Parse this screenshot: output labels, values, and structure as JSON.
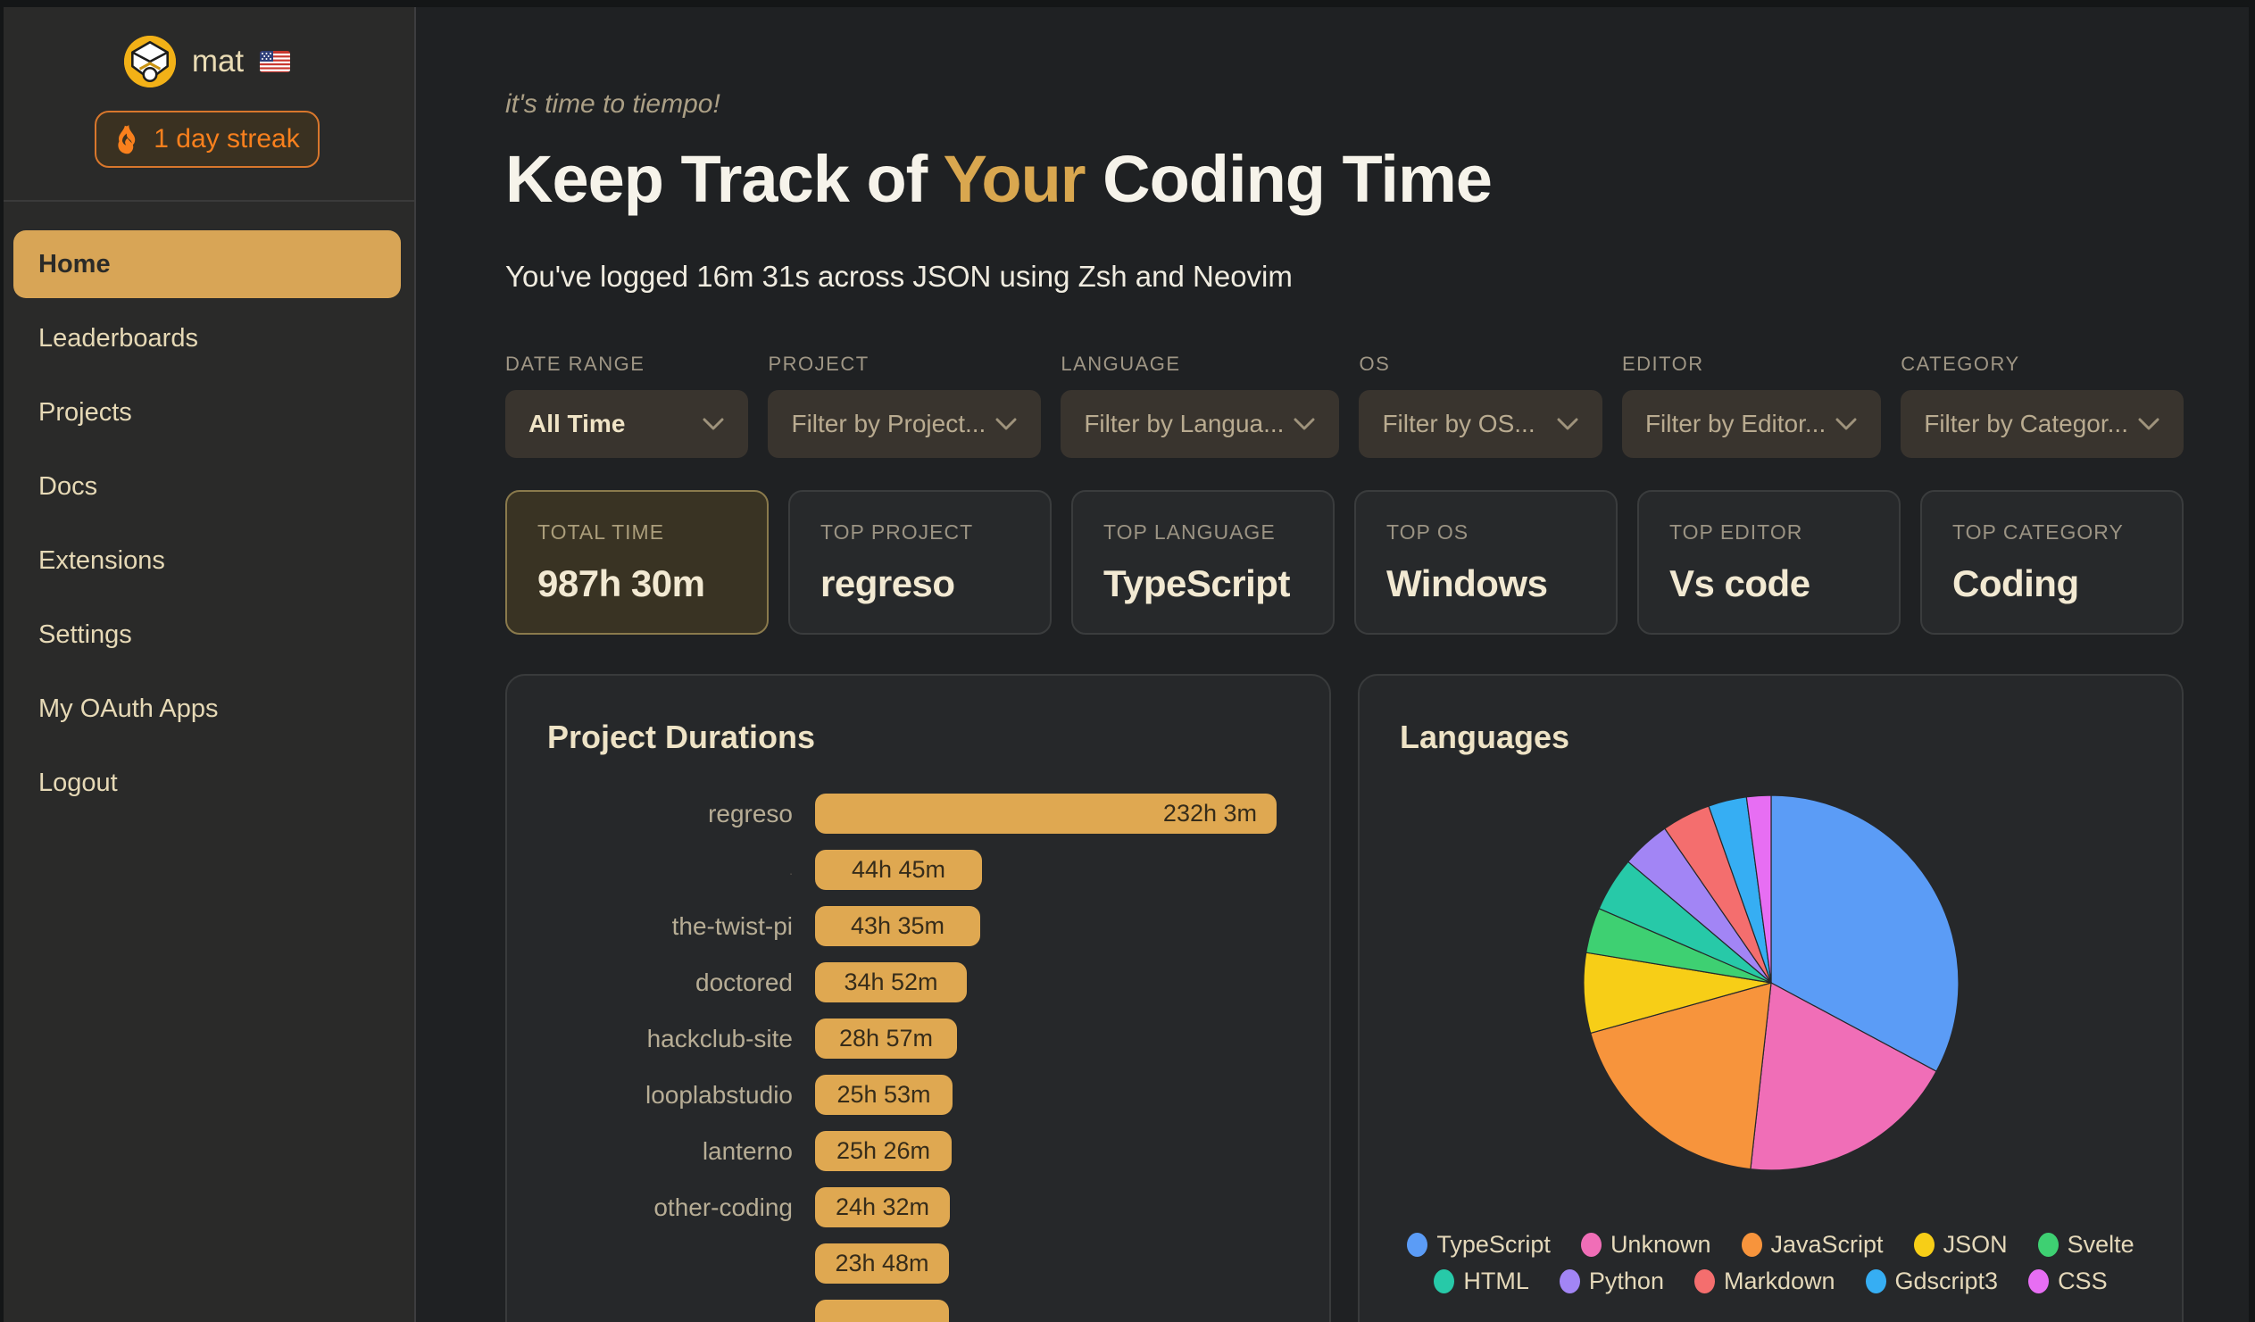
{
  "sidebar": {
    "username": "mat",
    "flag": "us-flag",
    "streak_label": "1 day streak",
    "items": [
      {
        "label": "Home",
        "active": true
      },
      {
        "label": "Leaderboards",
        "active": false
      },
      {
        "label": "Projects",
        "active": false
      },
      {
        "label": "Docs",
        "active": false
      },
      {
        "label": "Extensions",
        "active": false
      },
      {
        "label": "Settings",
        "active": false
      },
      {
        "label": "My OAuth Apps",
        "active": false
      },
      {
        "label": "Logout",
        "active": false
      }
    ]
  },
  "header": {
    "tagline": "it's time to tiempo!",
    "title_prefix": "Keep Track of ",
    "title_highlight": "Your",
    "title_suffix": " Coding Time",
    "subtitle": "You've logged 16m 31s across JSON using Zsh and Neovim"
  },
  "filters": [
    {
      "label": "DATE RANGE",
      "value": "All Time",
      "selected": true
    },
    {
      "label": "PROJECT",
      "value": "Filter by Project...",
      "selected": false
    },
    {
      "label": "LANGUAGE",
      "value": "Filter by Langua...",
      "selected": false
    },
    {
      "label": "OS",
      "value": "Filter by OS...",
      "selected": false
    },
    {
      "label": "EDITOR",
      "value": "Filter by Editor...",
      "selected": false
    },
    {
      "label": "CATEGORY",
      "value": "Filter by Categor...",
      "selected": false
    }
  ],
  "stats": [
    {
      "label": "TOTAL TIME",
      "value": "987h 30m",
      "highlight": true
    },
    {
      "label": "TOP PROJECT",
      "value": "regreso",
      "highlight": false
    },
    {
      "label": "TOP LANGUAGE",
      "value": "TypeScript",
      "highlight": false
    },
    {
      "label": "TOP OS",
      "value": "Windows",
      "highlight": false
    },
    {
      "label": "TOP EDITOR",
      "value": "Vs code",
      "highlight": false
    },
    {
      "label": "TOP CATEGORY",
      "value": "Coding",
      "highlight": false
    }
  ],
  "chart_data": [
    {
      "type": "bar",
      "title": "Project Durations",
      "orientation": "horizontal",
      "bar_color": "#dfa851",
      "bars": [
        {
          "label": "regreso",
          "value_label": "232h 3m",
          "hours": 232.05
        },
        {
          "label": ".",
          "value_label": "44h 45m",
          "hours": 44.75
        },
        {
          "label": "the-twist-pi",
          "value_label": "43h 35m",
          "hours": 43.58
        },
        {
          "label": "doctored",
          "value_label": "34h 52m",
          "hours": 34.87
        },
        {
          "label": "hackclub-site",
          "value_label": "28h 57m",
          "hours": 28.95
        },
        {
          "label": "looplabstudio",
          "value_label": "25h 53m",
          "hours": 25.88
        },
        {
          "label": "lanterno",
          "value_label": "25h 26m",
          "hours": 25.43
        },
        {
          "label": "other-coding",
          "value_label": "24h 32m",
          "hours": 24.53
        },
        {
          "label": "",
          "value_label": "23h 48m",
          "hours": 23.8
        }
      ],
      "partial_bar_at_bottom": true
    },
    {
      "type": "pie",
      "title": "Languages",
      "legend_position": "bottom",
      "slices": [
        {
          "label": "TypeScript",
          "percent": 32.8,
          "color": "#5b9cf6"
        },
        {
          "label": "Unknown",
          "percent": 18.9,
          "color": "#f06eb7"
        },
        {
          "label": "JavaScript",
          "percent": 18.9,
          "color": "#f7943c"
        },
        {
          "label": "JSON",
          "percent": 6.9,
          "color": "#f7ce17"
        },
        {
          "label": "Svelte",
          "percent": 3.9,
          "color": "#3ed072"
        },
        {
          "label": "HTML",
          "percent": 4.7,
          "color": "#27c9a8"
        },
        {
          "label": "Python",
          "percent": 4.2,
          "color": "#a285f5"
        },
        {
          "label": "Markdown",
          "percent": 4.2,
          "color": "#f46e6e"
        },
        {
          "label": "Gdscript3",
          "percent": 3.3,
          "color": "#36aef3"
        },
        {
          "label": "CSS",
          "percent": 2.1,
          "color": "#e76ef3"
        }
      ]
    }
  ]
}
